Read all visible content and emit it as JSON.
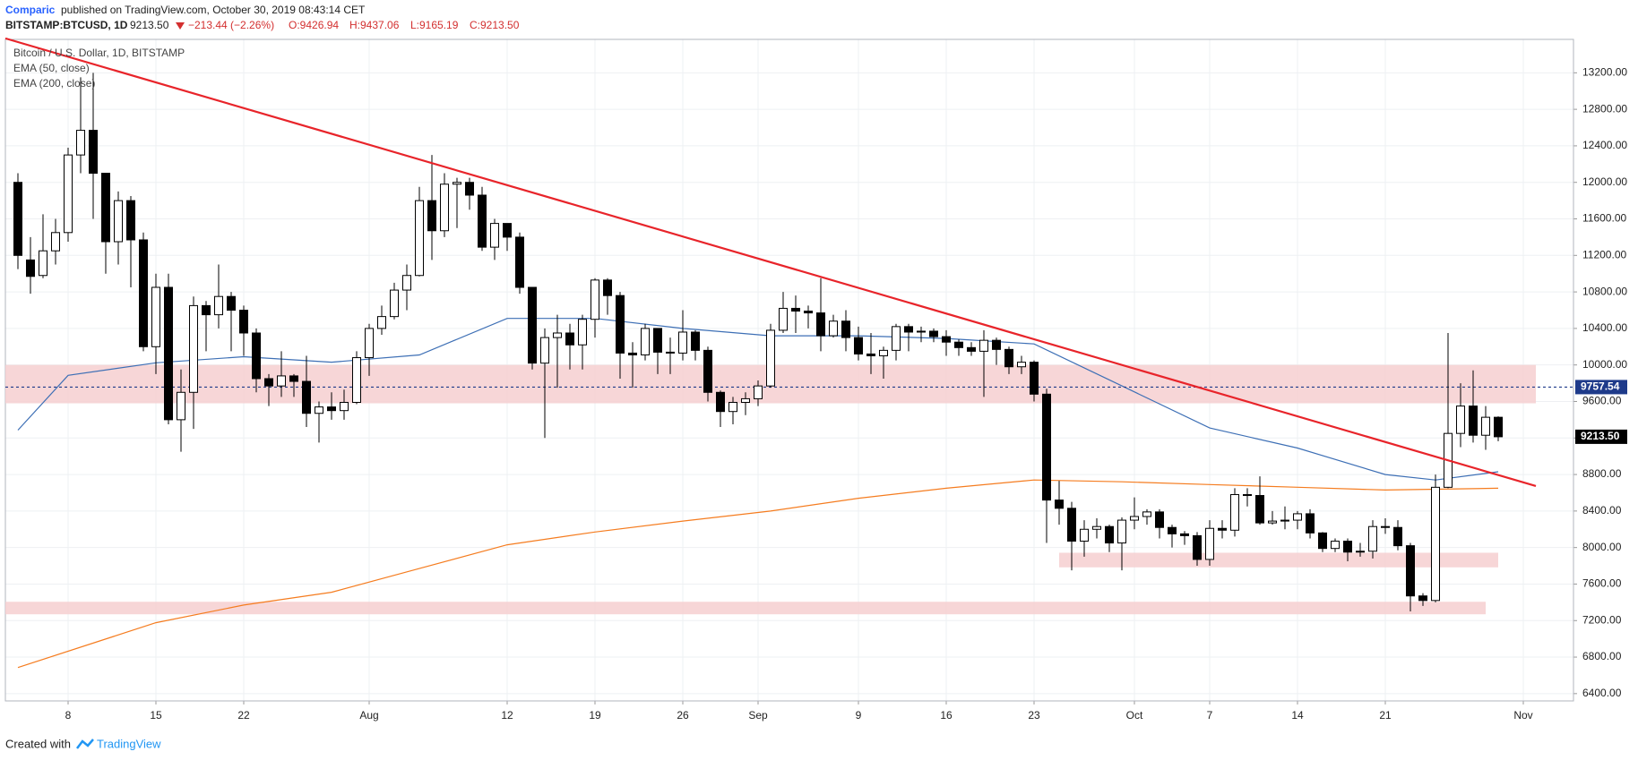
{
  "header": {
    "author": "Comparic",
    "published": "published on TradingView.com, October 30, 2019 08:43:14 CET",
    "symbol": "BITSTAMP:BTCUSD, 1D",
    "last": "9213.50",
    "change": "−213.44 (−2.26%)",
    "open": "O:9426.94",
    "high": "H:9437.06",
    "low": "L:9165.19",
    "close": "C:9213.50"
  },
  "footer": {
    "created": "Created with",
    "brand": "TradingView"
  },
  "chart_data": {
    "type": "candlestick",
    "title": "Bitcoin / U.S. Dollar, 1D, BITSTAMP",
    "x": [
      "2019-07-04",
      "2019-07-05",
      "2019-07-06",
      "2019-07-07",
      "2019-07-08",
      "2019-07-09",
      "2019-07-10",
      "2019-07-11",
      "2019-07-12",
      "2019-07-13",
      "2019-07-14",
      "2019-07-15",
      "2019-07-16",
      "2019-07-17",
      "2019-07-18",
      "2019-07-19",
      "2019-07-20",
      "2019-07-21",
      "2019-07-22",
      "2019-07-23",
      "2019-07-24",
      "2019-07-25",
      "2019-07-26",
      "2019-07-27",
      "2019-07-28",
      "2019-07-29",
      "2019-07-30",
      "2019-07-31",
      "2019-08-01",
      "2019-08-02",
      "2019-08-03",
      "2019-08-04",
      "2019-08-05",
      "2019-08-06",
      "2019-08-07",
      "2019-08-08",
      "2019-08-09",
      "2019-08-10",
      "2019-08-11",
      "2019-08-12",
      "2019-08-13",
      "2019-08-14",
      "2019-08-15",
      "2019-08-16",
      "2019-08-17",
      "2019-08-18",
      "2019-08-19",
      "2019-08-20",
      "2019-08-21",
      "2019-08-22",
      "2019-08-23",
      "2019-08-24",
      "2019-08-25",
      "2019-08-26",
      "2019-08-27",
      "2019-08-28",
      "2019-08-29",
      "2019-08-30",
      "2019-08-31",
      "2019-09-01",
      "2019-09-02",
      "2019-09-03",
      "2019-09-04",
      "2019-09-05",
      "2019-09-06",
      "2019-09-07",
      "2019-09-08",
      "2019-09-09",
      "2019-09-10",
      "2019-09-11",
      "2019-09-12",
      "2019-09-13",
      "2019-09-14",
      "2019-09-15",
      "2019-09-16",
      "2019-09-17",
      "2019-09-18",
      "2019-09-19",
      "2019-09-20",
      "2019-09-21",
      "2019-09-22",
      "2019-09-23",
      "2019-09-24",
      "2019-09-25",
      "2019-09-26",
      "2019-09-27",
      "2019-09-28",
      "2019-09-29",
      "2019-09-30",
      "2019-10-01",
      "2019-10-02",
      "2019-10-03",
      "2019-10-04",
      "2019-10-05",
      "2019-10-06",
      "2019-10-07",
      "2019-10-08",
      "2019-10-09",
      "2019-10-10",
      "2019-10-11",
      "2019-10-12",
      "2019-10-13",
      "2019-10-14",
      "2019-10-15",
      "2019-10-16",
      "2019-10-17",
      "2019-10-18",
      "2019-10-19",
      "2019-10-20",
      "2019-10-21",
      "2019-10-22",
      "2019-10-23",
      "2019-10-24",
      "2019-10-25",
      "2019-10-26",
      "2019-10-27",
      "2019-10-28",
      "2019-10-29",
      "2019-10-30"
    ],
    "open": [
      12000,
      11150,
      10980,
      11250,
      11450,
      12300,
      12570,
      12100,
      11350,
      11800,
      11370,
      10200,
      10850,
      9400,
      9700,
      10650,
      10550,
      10750,
      10600,
      10350,
      9850,
      9770,
      9880,
      9820,
      9470,
      9540,
      9500,
      9590,
      10080,
      10400,
      10530,
      10820,
      10980,
      11800,
      11470,
      11980,
      12000,
      11860,
      11290,
      11550,
      11400,
      10850,
      10020,
      10300,
      10350,
      10220,
      10500,
      10930,
      10760,
      10130,
      10110,
      10400,
      10140,
      10130,
      10360,
      10160,
      9700,
      9490,
      9590,
      9630,
      9770,
      10380,
      10620,
      10590,
      10570,
      10320,
      10480,
      10300,
      10120,
      10100,
      10160,
      10420,
      10360,
      10370,
      10310,
      10250,
      10190,
      10150,
      10270,
      10170,
      9980,
      10030,
      9680,
      8520,
      8430,
      8070,
      8200,
      8230,
      8050,
      8300,
      8340,
      8390,
      8220,
      8150,
      8130,
      7870,
      8210,
      8190,
      8580,
      8570,
      8270,
      8290,
      8300,
      8370,
      8160,
      7990,
      8070,
      7950,
      7960,
      8230,
      8220,
      8020,
      7470,
      7420,
      8660,
      9250,
      9550,
      9230,
      9426.94
    ],
    "high": [
      12100,
      11400,
      11650,
      11600,
      12380,
      13150,
      13200,
      12100,
      11900,
      11850,
      11450,
      11000,
      11000,
      9950,
      10750,
      10700,
      11100,
      10800,
      10650,
      10400,
      9900,
      10150,
      9900,
      10100,
      9600,
      9700,
      9730,
      10150,
      10450,
      10650,
      10900,
      11100,
      11950,
      12300,
      12100,
      12050,
      12050,
      11950,
      11600,
      11550,
      11450,
      10850,
      10400,
      10550,
      10450,
      10550,
      10950,
      10950,
      10800,
      10250,
      10450,
      10400,
      10300,
      10600,
      10380,
      10200,
      9720,
      9650,
      9700,
      9830,
      10450,
      10800,
      10760,
      10650,
      10950,
      10550,
      10600,
      10420,
      10350,
      10200,
      10450,
      10450,
      10420,
      10400,
      10380,
      10280,
      10250,
      10380,
      10300,
      10200,
      10100,
      10050,
      9740,
      8730,
      8500,
      8300,
      8320,
      8250,
      8330,
      8550,
      8420,
      8420,
      8250,
      8180,
      8170,
      8300,
      8300,
      8650,
      8650,
      8780,
      8400,
      8450,
      8400,
      8420,
      8170,
      8100,
      8100,
      8050,
      8300,
      8320,
      8300,
      8050,
      7500,
      8800,
      10350,
      9800,
      9940,
      9550,
      9437.06
    ],
    "low": [
      11050,
      10780,
      10950,
      11100,
      11350,
      12100,
      11600,
      11000,
      11100,
      10850,
      10150,
      9900,
      9350,
      9050,
      9300,
      10150,
      10400,
      10150,
      10100,
      9700,
      9550,
      9650,
      9650,
      9320,
      9150,
      9400,
      9400,
      9570,
      9880,
      10330,
      10500,
      10600,
      10970,
      11150,
      11400,
      11500,
      11700,
      11250,
      11150,
      11250,
      10780,
      9950,
      9200,
      9750,
      9950,
      9950,
      10300,
      10550,
      9850,
      9750,
      10050,
      9900,
      9900,
      10050,
      10050,
      9600,
      9320,
      9350,
      9450,
      9550,
      9750,
      10350,
      10350,
      10400,
      10150,
      10300,
      10150,
      10050,
      9900,
      9850,
      10050,
      10150,
      10250,
      10250,
      10100,
      10100,
      10100,
      9650,
      10000,
      9900,
      9900,
      9600,
      8050,
      8250,
      7750,
      7900,
      8100,
      7950,
      7750,
      8200,
      8250,
      8100,
      8000,
      8030,
      7800,
      7800,
      8100,
      8120,
      8450,
      8250,
      8250,
      8200,
      8200,
      8100,
      7950,
      7950,
      7850,
      7900,
      7880,
      8150,
      7970,
      7300,
      7360,
      7400,
      8650,
      9100,
      9150,
      9070,
      9165.19
    ],
    "close": [
      11200,
      10970,
      11250,
      11450,
      12300,
      12570,
      12100,
      11350,
      11800,
      11370,
      10200,
      10850,
      9400,
      9700,
      10650,
      10550,
      10750,
      10600,
      10350,
      9850,
      9770,
      9880,
      9820,
      9470,
      9540,
      9500,
      9590,
      10080,
      10400,
      10530,
      10820,
      10980,
      11800,
      11470,
      11980,
      12000,
      11860,
      11290,
      11550,
      11400,
      10850,
      10020,
      10300,
      10350,
      10220,
      10500,
      10930,
      10760,
      10130,
      10110,
      10400,
      10140,
      10130,
      10360,
      10160,
      9700,
      9490,
      9590,
      9630,
      9770,
      10380,
      10620,
      10590,
      10570,
      10320,
      10480,
      10300,
      10120,
      10100,
      10160,
      10420,
      10360,
      10370,
      10310,
      10250,
      10190,
      10150,
      10270,
      10170,
      9980,
      10030,
      9680,
      8520,
      8430,
      8070,
      8200,
      8230,
      8050,
      8300,
      8340,
      8390,
      8220,
      8150,
      8130,
      7870,
      8210,
      8190,
      8580,
      8570,
      8270,
      8290,
      8300,
      8370,
      8160,
      7990,
      8070,
      7950,
      7960,
      8230,
      8220,
      8020,
      7470,
      7420,
      8660,
      9250,
      9550,
      9230,
      9426.94,
      9213.5
    ],
    "up_color": "#ffffff",
    "down_color": "#000000",
    "wick_color": "#000000",
    "series": [
      {
        "name": "EMA (50, close)",
        "color": "#3d6fb5",
        "x": [
          "2019-07-04",
          "2019-07-08",
          "2019-07-15",
          "2019-07-22",
          "2019-07-29",
          "2019-08-05",
          "2019-08-12",
          "2019-08-19",
          "2019-08-26",
          "2019-09-02",
          "2019-09-09",
          "2019-09-16",
          "2019-09-23",
          "2019-09-30",
          "2019-10-07",
          "2019-10-14",
          "2019-10-21",
          "2019-10-25",
          "2019-10-30"
        ],
        "values": [
          9286,
          9886,
          10023,
          10090,
          10030,
          10110,
          10510,
          10510,
          10400,
          10320,
          10320,
          10290,
          10230,
          9770,
          9310,
          9090,
          8800,
          8740,
          8830
        ]
      },
      {
        "name": "EMA (200, close)",
        "color": "#f57c1f",
        "x": [
          "2019-07-04",
          "2019-07-15",
          "2019-07-22",
          "2019-07-29",
          "2019-08-05",
          "2019-08-12",
          "2019-08-19",
          "2019-08-26",
          "2019-09-02",
          "2019-09-09",
          "2019-09-16",
          "2019-09-23",
          "2019-09-30",
          "2019-10-07",
          "2019-10-14",
          "2019-10-21",
          "2019-10-30"
        ],
        "values": [
          6686,
          7177,
          7370,
          7510,
          7770,
          8030,
          8170,
          8290,
          8400,
          8540,
          8650,
          8740,
          8720,
          8690,
          8660,
          8630,
          8650
        ]
      }
    ],
    "trendline": {
      "x": [
        "2019-07-03",
        "2019-11-02"
      ],
      "y": [
        13577,
        8674
      ],
      "color": "#e8242a"
    },
    "zones": [
      {
        "x": [
          "2019-07-03",
          "2019-11-02"
        ],
        "y": [
          9580,
          10000
        ]
      },
      {
        "x": [
          "2019-09-25",
          "2019-10-30"
        ],
        "y": [
          7783,
          7943
        ]
      },
      {
        "x": [
          "2019-07-03",
          "2019-10-29"
        ],
        "y": [
          7269,
          7406
        ]
      }
    ],
    "zone_color": "#f6cfd0",
    "price_line": {
      "value": 9757.54,
      "label": "9757.54",
      "color": "#1e3a8a"
    },
    "last_price": {
      "value": 9213.5,
      "label": "9213.50"
    },
    "xlim": [
      "2019-07-03",
      "2019-11-05"
    ],
    "xticks": [
      {
        "value": "2019-07-08",
        "label": "8"
      },
      {
        "value": "2019-07-15",
        "label": "15"
      },
      {
        "value": "2019-07-22",
        "label": "22"
      },
      {
        "value": "2019-08-01",
        "label": "Aug"
      },
      {
        "value": "2019-08-12",
        "label": "12"
      },
      {
        "value": "2019-08-19",
        "label": "19"
      },
      {
        "value": "2019-08-26",
        "label": "26"
      },
      {
        "value": "2019-09-01",
        "label": "Sep"
      },
      {
        "value": "2019-09-09",
        "label": "9"
      },
      {
        "value": "2019-09-16",
        "label": "16"
      },
      {
        "value": "2019-09-23",
        "label": "23"
      },
      {
        "value": "2019-10-01",
        "label": "Oct"
      },
      {
        "value": "2019-10-07",
        "label": "7"
      },
      {
        "value": "2019-10-14",
        "label": "14"
      },
      {
        "value": "2019-10-21",
        "label": "21"
      },
      {
        "value": "2019-11-01",
        "label": "Nov"
      }
    ],
    "ylim": [
      6320,
      13566
    ],
    "yticks": [
      {
        "value": 6400,
        "label": "6400.00"
      },
      {
        "value": 6800,
        "label": "6800.00"
      },
      {
        "value": 7200,
        "label": "7200.00"
      },
      {
        "value": 7600,
        "label": "7600.00"
      },
      {
        "value": 8000,
        "label": "8000.00"
      },
      {
        "value": 8400,
        "label": "8400.00"
      },
      {
        "value": 8800,
        "label": "8800.00"
      },
      {
        "value": 9200,
        "label": "9200.00"
      },
      {
        "value": 9600,
        "label": "9600.00"
      },
      {
        "value": 10000,
        "label": "10000.00"
      },
      {
        "value": 10400,
        "label": "10400.00"
      },
      {
        "value": 10800,
        "label": "10800.00"
      },
      {
        "value": 11200,
        "label": "11200.00"
      },
      {
        "value": 11600,
        "label": "11600.00"
      },
      {
        "value": 12000,
        "label": "12000.00"
      },
      {
        "value": 12400,
        "label": "12400.00"
      },
      {
        "value": 12800,
        "label": "12800.00"
      },
      {
        "value": 13200,
        "label": "13200.00"
      }
    ],
    "grid": true
  }
}
